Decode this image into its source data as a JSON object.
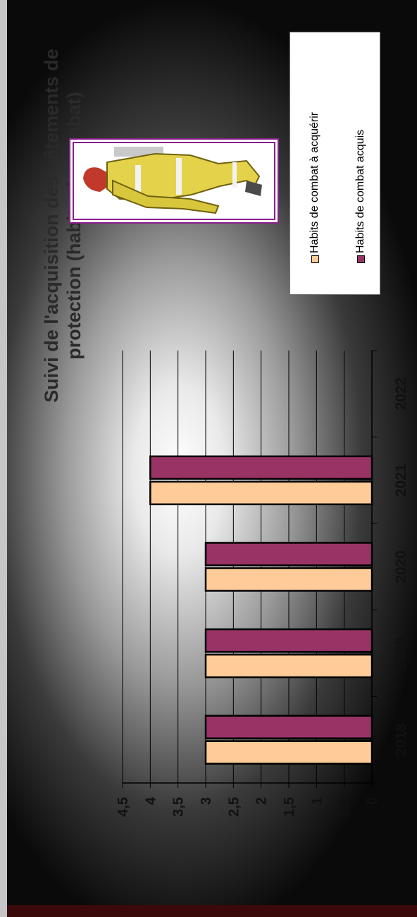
{
  "chart_data": {
    "type": "bar",
    "title": "Suivi de l'acquisition des vêtements de protection (habits de combat)",
    "title_lines": [
      "Suivi de l'acquisition des vêtements de",
      "protection (habits de combat)"
    ],
    "categories": [
      "2018",
      "2019",
      "2020",
      "2021",
      "2022"
    ],
    "series": [
      {
        "name": "Habits de combat à acquérir",
        "values": [
          3,
          3,
          3,
          4,
          0
        ],
        "color": "#ffcc99"
      },
      {
        "name": "Habits de combat acquis",
        "values": [
          3,
          3,
          3,
          4,
          0
        ],
        "color": "#993366"
      }
    ],
    "ylim": [
      0,
      4.5
    ],
    "y_ticks": [
      "0",
      "0,5",
      "1",
      "1,5",
      "2",
      "2,5",
      "3",
      "3,5",
      "4",
      "4,5"
    ],
    "grid": true,
    "legend_position": "right"
  },
  "image": {
    "icon": "firefighter-illustration"
  }
}
